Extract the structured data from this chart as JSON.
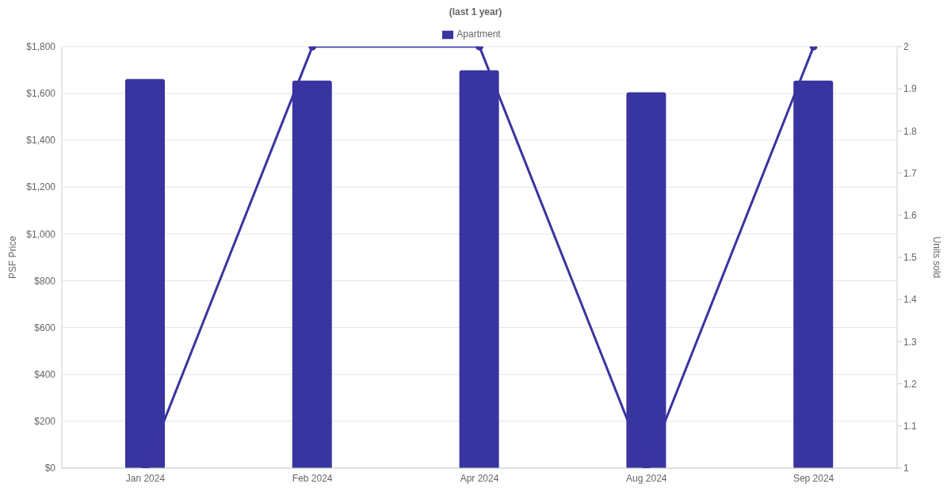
{
  "chart_data": {
    "type": "bar",
    "title": "(last 1 year)",
    "categories": [
      "Jan 2024",
      "Feb 2024",
      "Apr 2024",
      "Aug 2024",
      "Sep 2024"
    ],
    "series": [
      {
        "name": "Apartment",
        "color": "#3834a0",
        "values": [
          1662,
          1655,
          1699,
          1605,
          1655
        ]
      },
      {
        "type": "line",
        "axis": "y2",
        "color": "#3834a0",
        "values": [
          1,
          2,
          2,
          1,
          2
        ]
      }
    ],
    "ylabel": "PSF Price",
    "y2label": "Units sold",
    "ylim": [
      0,
      1800
    ],
    "yticks": [
      {
        "value": 0,
        "label": "$0"
      },
      {
        "value": 200,
        "label": "$200"
      },
      {
        "value": 400,
        "label": "$400"
      },
      {
        "value": 600,
        "label": "$600"
      },
      {
        "value": 800,
        "label": "$800"
      },
      {
        "value": 1000,
        "label": "$1,000"
      },
      {
        "value": 1200,
        "label": "$1,200"
      },
      {
        "value": 1400,
        "label": "$1,400"
      },
      {
        "value": 1600,
        "label": "$1,600"
      },
      {
        "value": 1800,
        "label": "$1,800"
      }
    ],
    "y2lim": [
      1,
      2
    ],
    "y2ticks": [
      1,
      1.1,
      1.2,
      1.3,
      1.4,
      1.5,
      1.6,
      1.7,
      1.8,
      1.9,
      2
    ],
    "grid": "y",
    "legend": "top",
    "marker": "circle",
    "line_style": "solid"
  }
}
